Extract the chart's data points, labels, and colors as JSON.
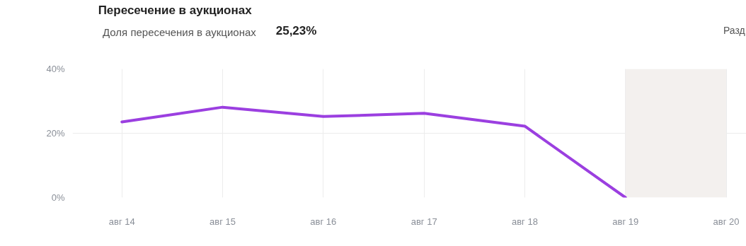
{
  "chart_data": {
    "type": "line",
    "title": "Пересечение в аукционах",
    "categories": [
      "авг 14",
      "авг 15",
      "авг 16",
      "авг 17",
      "авг 18",
      "авг 19",
      "авг 20"
    ],
    "series": [
      {
        "name": "Доля пересечения в аукционах",
        "color": "#9b3fe0",
        "values": [
          23.5,
          28.1,
          25.2,
          26.2,
          22.2,
          0,
          null
        ]
      }
    ],
    "ylim": [
      0,
      40
    ],
    "yticks": [
      {
        "value": 0,
        "label": "0%"
      },
      {
        "value": 20,
        "label": "20%"
      },
      {
        "value": 40,
        "label": "40%"
      }
    ],
    "bands": [
      {
        "axis": "x",
        "from": "авг 19",
        "to": "авг 20",
        "color": "#f3f0ee"
      }
    ],
    "annotations": [
      "25,23%",
      "Разд"
    ],
    "grid": true,
    "legend": "top left",
    "marker": "none",
    "line_style": "solid"
  }
}
